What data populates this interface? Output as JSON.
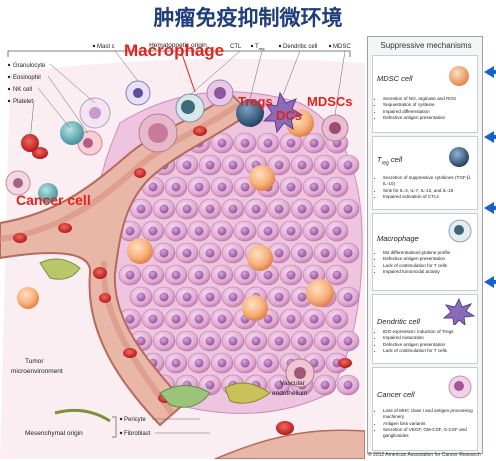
{
  "page": {
    "title": "肿瘤免疫抑制微环境"
  },
  "illustration": {
    "header": "Hematopoetic origin",
    "left_labels": [
      "Granulocyte",
      "Eosinophil",
      "NK cell",
      "Platelet"
    ],
    "top_labels": [
      "Mast c",
      "CTL",
      "T",
      "Dendritic cell",
      "MDSC"
    ],
    "treg_sub": "reg",
    "tumor_env_label": [
      "Tumor",
      "microenvironment"
    ],
    "mesenchymal_label": "Mesenchymal origin",
    "mesenchymal_items": [
      "Pericyte",
      "Fibroblast"
    ],
    "vascular_label": [
      "Vascular",
      "endothelium"
    ],
    "overlay_labels": {
      "macrophage": "Macrophage",
      "tregs": "Tregs",
      "dcs": "DCs",
      "mdscs": "MDSCs",
      "cancer_cell": "Cancer cell"
    }
  },
  "panel": {
    "title": "Suppressive mechanisms",
    "sections": [
      {
        "heading": "MDSC cell",
        "bullets": [
          "Secretion of NO, arginase and ROS",
          "Sequestration of cysteine",
          "Impaired differentiation",
          "Defective antigen presentation"
        ]
      },
      {
        "heading": "T",
        "heading_sub": "reg",
        "heading_tail": " cell",
        "bullets": [
          "Secretion of suppressive cytokines (TGF-β, IL-10)",
          "Sink for IL-2, IL-7, IL-12, and IL-15",
          "Impaired activation of CTLs"
        ]
      },
      {
        "heading": "Macrophage",
        "bullets": [
          "M2 differentiation/cytokine profile",
          "Defective antigen presentation",
          "Lack of costimulation for T cells",
          "Impaired tumoricidal activity"
        ]
      },
      {
        "heading": "Dendritic cell",
        "bullets": [
          "IDO expression: induction of Tregs",
          "Impaired maturation",
          "Defective antigen presentation",
          "Lack of costimulation for T cells"
        ]
      },
      {
        "heading": "Cancer cell",
        "bullets": [
          "Loss of MHC class I and antigen processing machinery",
          "Antigen loss variants",
          "Secretion of VEGF, GM-CSF, G-CSF and gangliosides"
        ]
      }
    ]
  },
  "copyright": "© 2012 American Association for Cancer Research",
  "colors": {
    "title": "#1f3d7a",
    "overlay_red": "#e2231a",
    "arrow_blue": "#1662c9"
  }
}
